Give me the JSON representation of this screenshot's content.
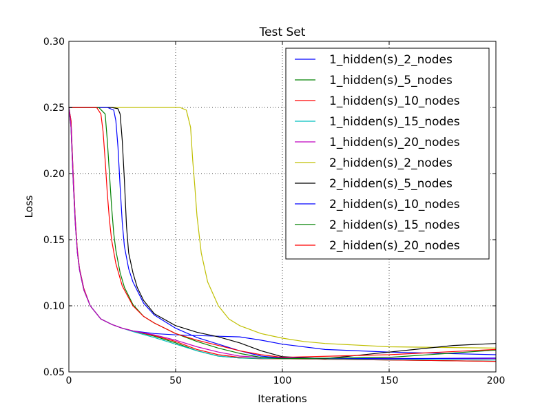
{
  "chart_data": {
    "type": "line",
    "title": "Test Set",
    "xlabel": "Iterations",
    "ylabel": "Loss",
    "xlim": [
      0,
      200
    ],
    "ylim": [
      0.05,
      0.3
    ],
    "xticks": [
      0,
      50,
      100,
      150,
      200
    ],
    "xtick_labels": [
      "0",
      "50",
      "100",
      "150",
      "200"
    ],
    "yticks": [
      0.05,
      0.1,
      0.15,
      0.2,
      0.25,
      0.3
    ],
    "ytick_labels": [
      "0.05",
      "0.10",
      "0.15",
      "0.20",
      "0.25",
      "0.30"
    ],
    "grid": true,
    "legend_position": "top-right",
    "series": [
      {
        "name": "1_hidden(s)_2_nodes",
        "color": "#0000ff",
        "x": [
          0,
          1,
          2,
          3,
          4,
          5,
          7,
          10,
          15,
          20,
          25,
          30,
          40,
          50,
          60,
          70,
          80,
          90,
          100,
          120,
          150,
          200
        ],
        "y": [
          0.25,
          0.24,
          0.2,
          0.165,
          0.14,
          0.128,
          0.113,
          0.1,
          0.09,
          0.086,
          0.083,
          0.081,
          0.079,
          0.078,
          0.0775,
          0.077,
          0.0765,
          0.074,
          0.071,
          0.067,
          0.065,
          0.063
        ]
      },
      {
        "name": "1_hidden(s)_5_nodes",
        "color": "#008000",
        "x": [
          0,
          1,
          2,
          3,
          4,
          5,
          7,
          10,
          15,
          20,
          25,
          30,
          40,
          50,
          60,
          70,
          80,
          90,
          100,
          150,
          200
        ],
        "y": [
          0.25,
          0.235,
          0.195,
          0.162,
          0.14,
          0.127,
          0.112,
          0.1,
          0.09,
          0.086,
          0.083,
          0.081,
          0.077,
          0.072,
          0.066,
          0.062,
          0.0605,
          0.06,
          0.06,
          0.059,
          0.058
        ]
      },
      {
        "name": "1_hidden(s)_10_nodes",
        "color": "#ff0000",
        "x": [
          0,
          1,
          2,
          3,
          4,
          5,
          7,
          10,
          15,
          20,
          25,
          30,
          40,
          50,
          60,
          70,
          80,
          90,
          100,
          150,
          200
        ],
        "y": [
          0.25,
          0.24,
          0.2,
          0.165,
          0.142,
          0.128,
          0.113,
          0.1,
          0.09,
          0.086,
          0.083,
          0.081,
          0.0775,
          0.073,
          0.067,
          0.063,
          0.061,
          0.06,
          0.06,
          0.059,
          0.058
        ]
      },
      {
        "name": "1_hidden(s)_15_nodes",
        "color": "#00bfbf",
        "x": [
          0,
          1,
          2,
          3,
          4,
          5,
          7,
          10,
          15,
          20,
          25,
          30,
          40,
          50,
          60,
          70,
          80,
          90,
          100,
          150,
          200
        ],
        "y": [
          0.25,
          0.235,
          0.195,
          0.162,
          0.14,
          0.127,
          0.112,
          0.1,
          0.09,
          0.086,
          0.083,
          0.0805,
          0.076,
          0.071,
          0.066,
          0.062,
          0.0605,
          0.0603,
          0.0602,
          0.0595,
          0.059
        ]
      },
      {
        "name": "1_hidden(s)_20_nodes",
        "color": "#bf00bf",
        "x": [
          0,
          1,
          2,
          3,
          4,
          5,
          7,
          10,
          15,
          20,
          25,
          30,
          40,
          50,
          60,
          70,
          80,
          90,
          100,
          150,
          200
        ],
        "y": [
          0.25,
          0.235,
          0.195,
          0.162,
          0.14,
          0.127,
          0.112,
          0.1,
          0.09,
          0.086,
          0.083,
          0.081,
          0.078,
          0.074,
          0.069,
          0.065,
          0.062,
          0.061,
          0.0605,
          0.0602,
          0.06
        ]
      },
      {
        "name": "2_hidden(s)_2_nodes",
        "color": "#bfbf00",
        "x": [
          0,
          40,
          52,
          55,
          57,
          58,
          59,
          60,
          62,
          65,
          70,
          75,
          80,
          90,
          100,
          110,
          120,
          150,
          200
        ],
        "y": [
          0.25,
          0.25,
          0.25,
          0.248,
          0.235,
          0.21,
          0.19,
          0.168,
          0.14,
          0.118,
          0.1,
          0.09,
          0.085,
          0.079,
          0.0755,
          0.073,
          0.0715,
          0.069,
          0.068
        ]
      },
      {
        "name": "2_hidden(s)_5_nodes",
        "color": "#000000",
        "x": [
          0,
          20,
          23,
          24,
          25,
          26,
          27,
          28,
          30,
          32,
          35,
          40,
          50,
          60,
          70,
          80,
          90,
          100,
          120,
          150,
          180,
          200
        ],
        "y": [
          0.25,
          0.25,
          0.249,
          0.245,
          0.225,
          0.195,
          0.16,
          0.14,
          0.125,
          0.114,
          0.104,
          0.094,
          0.085,
          0.08,
          0.0765,
          0.072,
          0.066,
          0.0615,
          0.06,
          0.065,
          0.07,
          0.0715
        ]
      },
      {
        "name": "2_hidden(s)_10_nodes",
        "color": "#0000ff",
        "x": [
          0,
          18,
          21,
          22,
          23,
          24,
          25,
          26,
          28,
          30,
          35,
          40,
          50,
          60,
          70,
          80,
          90,
          100,
          150,
          200
        ],
        "y": [
          0.25,
          0.25,
          0.248,
          0.24,
          0.22,
          0.19,
          0.163,
          0.145,
          0.128,
          0.118,
          0.102,
          0.093,
          0.083,
          0.076,
          0.071,
          0.066,
          0.062,
          0.0605,
          0.06,
          0.0605
        ]
      },
      {
        "name": "2_hidden(s)_15_nodes",
        "color": "#008000",
        "x": [
          0,
          14,
          17,
          18,
          19,
          20,
          21,
          22,
          24,
          26,
          30,
          35,
          40,
          50,
          60,
          70,
          80,
          90,
          100,
          150,
          200
        ],
        "y": [
          0.25,
          0.25,
          0.245,
          0.225,
          0.2,
          0.175,
          0.155,
          0.142,
          0.125,
          0.114,
          0.101,
          0.092,
          0.087,
          0.079,
          0.073,
          0.068,
          0.064,
          0.061,
          0.06,
          0.061,
          0.0665
        ]
      },
      {
        "name": "2_hidden(s)_20_nodes",
        "color": "#ff0000",
        "x": [
          0,
          13,
          15,
          16,
          17,
          18,
          19,
          20,
          22,
          25,
          30,
          35,
          40,
          50,
          60,
          70,
          80,
          90,
          100,
          150,
          200
        ],
        "y": [
          0.25,
          0.25,
          0.245,
          0.232,
          0.21,
          0.185,
          0.165,
          0.15,
          0.132,
          0.115,
          0.1,
          0.092,
          0.087,
          0.079,
          0.074,
          0.07,
          0.066,
          0.063,
          0.061,
          0.063,
          0.067
        ]
      }
    ]
  }
}
